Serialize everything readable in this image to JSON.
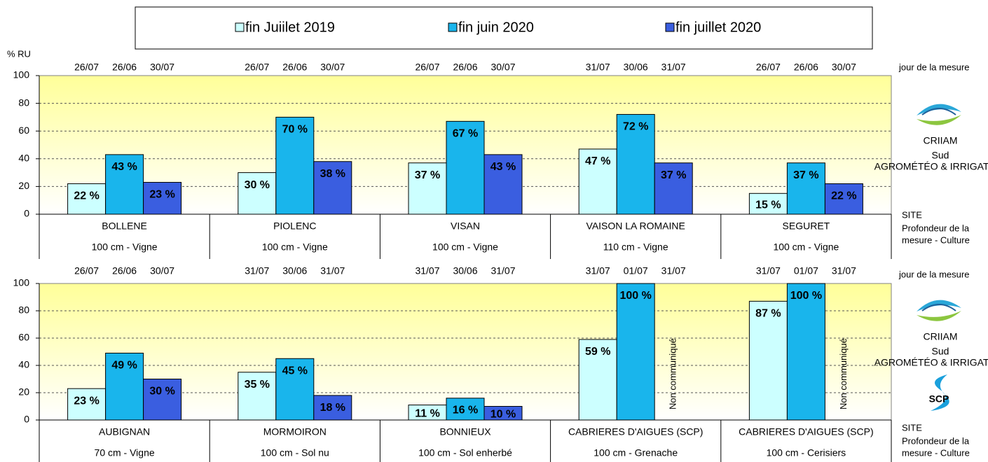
{
  "chart_data": [
    {
      "type": "bar",
      "ylabel": "% RU",
      "categories": [
        "BOLLENE",
        "PIOLENC",
        "VISAN",
        "VAISON LA ROMAINE",
        "SEGURET"
      ],
      "subcategories": [
        "100 cm - Vigne",
        "100 cm - Vigne",
        "100 cm - Vigne",
        "110 cm - Vigne",
        "100 cm - Vigne"
      ],
      "series": [
        {
          "name": "fin Juiilet 2019",
          "color": "#ccffff",
          "label_color": "#000000",
          "values": [
            22,
            30,
            37,
            47,
            15
          ],
          "value_labels": [
            "22 %",
            "30 %",
            "37 %",
            "47 %",
            "15 %"
          ],
          "dates": [
            "26/07",
            "26/07",
            "26/07",
            "31/07",
            "26/07"
          ]
        },
        {
          "name": "fin juin 2020",
          "color": "#19b5ec",
          "label_color": "#ff0000",
          "values": [
            43,
            70,
            67,
            72,
            37
          ],
          "value_labels": [
            "43 %",
            "70 %",
            "67 %",
            "72 %",
            "37 %"
          ],
          "dates": [
            "26/06",
            "26/06",
            "26/06",
            "30/06",
            "26/06"
          ]
        },
        {
          "name": "fin juillet 2020",
          "color": "#3a5ee0",
          "label_color": "#ffffff",
          "values": [
            23,
            38,
            43,
            37,
            22
          ],
          "value_labels": [
            "23 %",
            "38 %",
            "43 %",
            "37 %",
            "22 %"
          ],
          "dates": [
            "30/07",
            "30/07",
            "30/07",
            "31/07",
            "30/07"
          ]
        }
      ],
      "ylim": [
        0,
        100
      ],
      "yticks": [
        0,
        20,
        40,
        60,
        80,
        100
      ],
      "grid": true,
      "right_labels": {
        "date": "jour de la mesure",
        "site": "SITE",
        "depth": [
          "Profondeur de la",
          "mesure - Culture"
        ]
      },
      "logos": [
        {
          "name": "CRIIAM",
          "sub": "Sud",
          "tagline": "AGROMÉTÉO & IRRIGATION"
        }
      ]
    },
    {
      "type": "bar",
      "categories": [
        "AUBIGNAN",
        "MORMOIRON",
        "BONNIEUX",
        "CABRIERES D'AIGUES (SCP)",
        "CABRIERES D'AIGUES (SCP)"
      ],
      "subcategories": [
        "70 cm - Vigne",
        "100 cm - Sol nu",
        "100 cm - Sol enherbé",
        "100 cm - Grenache",
        "100 cm - Cerisiers"
      ],
      "series": [
        {
          "name": "fin Juiilet 2019",
          "color": "#ccffff",
          "label_color": "#000000",
          "values": [
            23,
            35,
            11,
            59,
            87
          ],
          "value_labels": [
            "23 %",
            "35 %",
            "11 %",
            "59 %",
            "87 %"
          ],
          "dates": [
            "26/07",
            "31/07",
            "31/07",
            "31/07",
            "31/07"
          ]
        },
        {
          "name": "fin juin 2020",
          "color": "#19b5ec",
          "label_color": "#ff0000",
          "values": [
            49,
            45,
            16,
            100,
            100
          ],
          "value_labels": [
            "49 %",
            "45 %",
            "16 %",
            "100 %",
            "100 %"
          ],
          "dates": [
            "26/06",
            "30/06",
            "30/06",
            "01/07",
            "01/07"
          ]
        },
        {
          "name": "fin juillet 2020",
          "color": "#3a5ee0",
          "label_color": "#ffffff",
          "values": [
            30,
            18,
            10,
            null,
            null
          ],
          "value_labels": [
            "30 %",
            "18 %",
            "10 %",
            "Non communiqué",
            "Non communiqué"
          ],
          "dates": [
            "30/07",
            "31/07",
            "31/07",
            "31/07",
            "31/07"
          ]
        }
      ],
      "ylim": [
        0,
        100
      ],
      "yticks": [
        0,
        20,
        40,
        60,
        80,
        100
      ],
      "grid": true,
      "right_labels": {
        "date": "jour de la mesure",
        "site": "SITE",
        "depth": [
          "Profondeur de la",
          "mesure - Culture"
        ]
      },
      "logos": [
        {
          "name": "CRIIAM",
          "sub": "Sud",
          "tagline": "AGROMÉTÉO & IRRIGATION"
        },
        {
          "name": "SCP"
        }
      ]
    }
  ]
}
